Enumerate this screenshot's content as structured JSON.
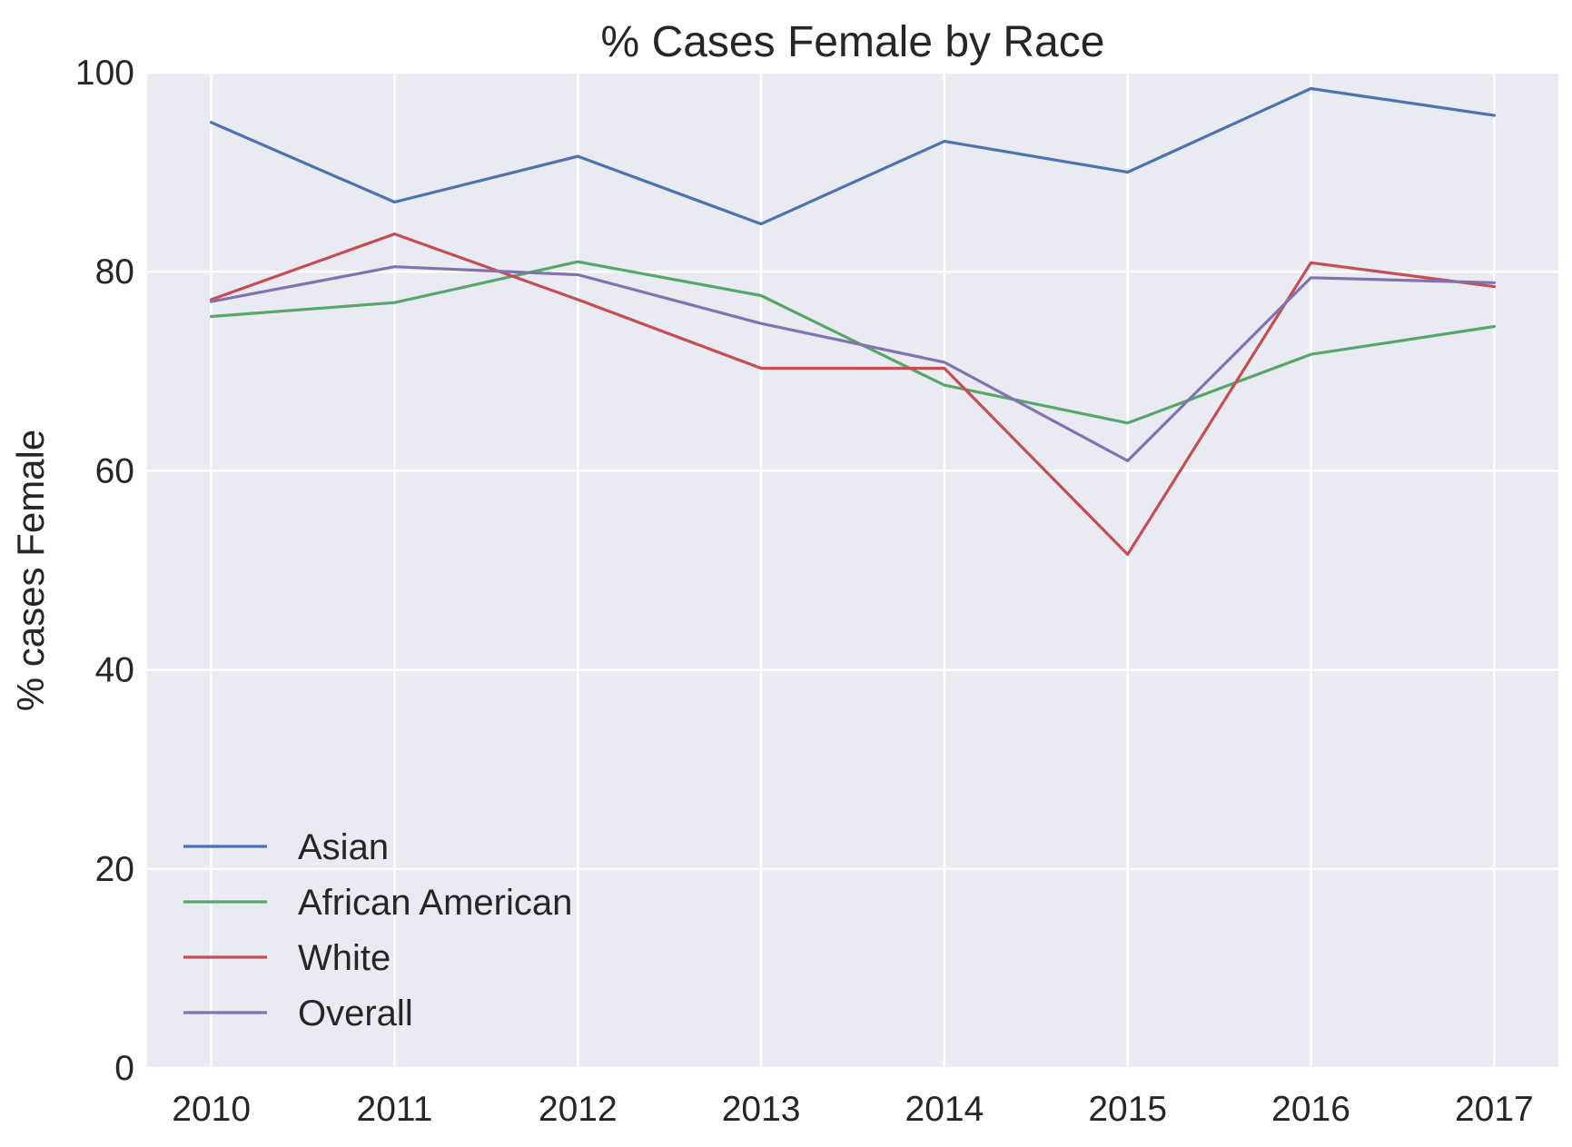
{
  "chart_data": {
    "type": "line",
    "title": "% Cases Female by Race",
    "xlabel": "",
    "ylabel": "% cases Female",
    "x": [
      2010,
      2011,
      2012,
      2013,
      2014,
      2015,
      2016,
      2017
    ],
    "x_tick_labels": [
      "2010",
      "2011",
      "2012",
      "2013",
      "2014",
      "2015",
      "2016",
      "2017"
    ],
    "y_ticks": [
      0,
      20,
      40,
      60,
      80,
      100
    ],
    "y_tick_labels": [
      "0",
      "20",
      "40",
      "60",
      "80",
      "100"
    ],
    "ylim": [
      0,
      100
    ],
    "xlim": [
      2009.65,
      2017.35
    ],
    "grid": true,
    "legend_position": "lower-left",
    "background_color": "#eaeaf2",
    "grid_color": "#ffffff",
    "series": [
      {
        "name": "Asian",
        "color": "#4c72b0",
        "values": [
          95.0,
          87.0,
          91.6,
          84.8,
          93.1,
          90.0,
          98.4,
          95.7
        ]
      },
      {
        "name": "African American",
        "color": "#55a868",
        "values": [
          75.5,
          76.9,
          81.0,
          77.6,
          68.6,
          64.8,
          71.7,
          74.5
        ]
      },
      {
        "name": "White",
        "color": "#c44e52",
        "values": [
          77.2,
          83.8,
          77.2,
          70.3,
          70.3,
          51.6,
          80.9,
          78.5
        ]
      },
      {
        "name": "Overall",
        "color": "#8172b2",
        "values": [
          77.0,
          80.5,
          79.7,
          74.8,
          70.9,
          61.0,
          79.4,
          78.9
        ]
      }
    ]
  }
}
